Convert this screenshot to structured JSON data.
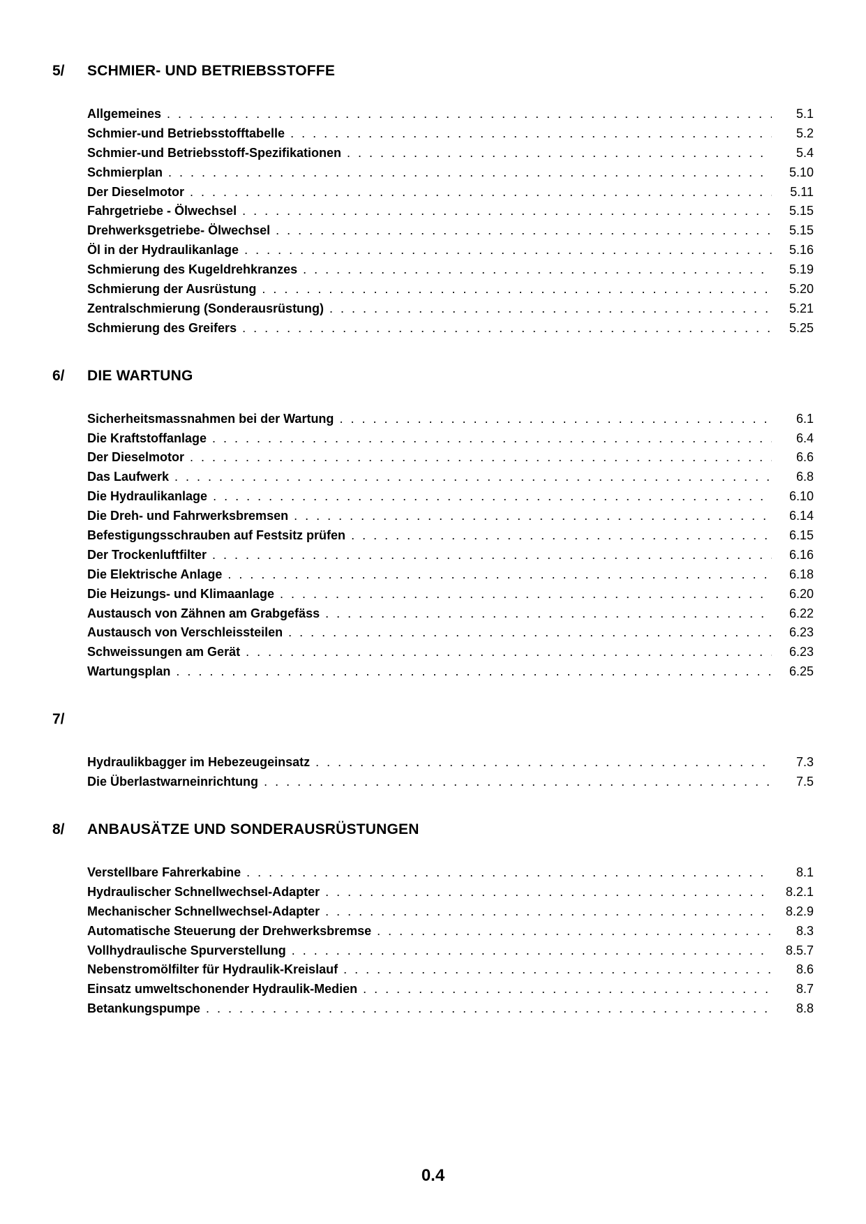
{
  "footer": "0.4",
  "sections": [
    {
      "num": "5/",
      "title": "SCHMIER- UND BETRIEBSSTOFFE",
      "entries": [
        {
          "title": "Allgemeines",
          "page": "5.1"
        },
        {
          "title": "Schmier-und Betriebsstofftabelle",
          "page": "5.2"
        },
        {
          "title": "Schmier-und Betriebsstoff-Spezifikationen",
          "page": "5.4"
        },
        {
          "title": "Schmierplan",
          "page": "5.10"
        },
        {
          "title": "Der Dieselmotor",
          "page": "5.11"
        },
        {
          "title": "Fahrgetriebe - Ölwechsel",
          "page": "5.15"
        },
        {
          "title": "Drehwerksgetriebe- Ölwechsel",
          "page": "5.15"
        },
        {
          "title": "Öl in der Hydraulikanlage",
          "page": "5.16"
        },
        {
          "title": "Schmierung des Kugeldrehkranzes",
          "page": "5.19"
        },
        {
          "title": "Schmierung der Ausrüstung",
          "page": "5.20"
        },
        {
          "title": "Zentralschmierung (Sonderausrüstung)",
          "page": "5.21"
        },
        {
          "title": "Schmierung des Greifers",
          "page": "5.25"
        }
      ]
    },
    {
      "num": "6/",
      "title": "DIE WARTUNG",
      "entries": [
        {
          "title": "Sicherheitsmassnahmen bei der Wartung",
          "page": "6.1"
        },
        {
          "title": "Die Kraftstoffanlage",
          "page": "6.4"
        },
        {
          "title": "Der Dieselmotor",
          "page": "6.6"
        },
        {
          "title": "Das Laufwerk",
          "page": "6.8"
        },
        {
          "title": "Die Hydraulikanlage",
          "page": "6.10"
        },
        {
          "title": "Die Dreh- und Fahrwerksbremsen",
          "page": "6.14"
        },
        {
          "title": "Befestigungsschrauben auf Festsitz prüfen",
          "page": "6.15"
        },
        {
          "title": "Der Trockenluftfilter",
          "page": "6.16"
        },
        {
          "title": "Die Elektrische Anlage",
          "page": "6.18"
        },
        {
          "title": "Die Heizungs- und Klimaanlage",
          "page": "6.20"
        },
        {
          "title": "Austausch von Zähnen am Grabgefäss",
          "page": "6.22"
        },
        {
          "title": "Austausch von Verschleissteilen",
          "page": "6.23"
        },
        {
          "title": "Schweissungen am Gerät",
          "page": "6.23"
        },
        {
          "title": "Wartungsplan",
          "page": "6.25"
        }
      ]
    },
    {
      "num": "7/",
      "title": "",
      "entries": [
        {
          "title": "Hydraulikbagger im Hebezeugeinsatz",
          "page": "7.3"
        },
        {
          "title": "Die Überlastwarneinrichtung",
          "page": "7.5"
        }
      ]
    },
    {
      "num": "8/",
      "title": "ANBAUSÄTZE UND SONDERAUSRÜSTUNGEN",
      "entries": [
        {
          "title": "Verstellbare Fahrerkabine",
          "page": "8.1"
        },
        {
          "title": "Hydraulischer Schnellwechsel-Adapter",
          "page": "8.2.1"
        },
        {
          "title": "Mechanischer Schnellwechsel-Adapter",
          "page": "8.2.9"
        },
        {
          "title": "Automatische Steuerung der Drehwerksbremse",
          "page": "8.3"
        },
        {
          "title": "Vollhydraulische Spurverstellung",
          "page": "8.5.7"
        },
        {
          "title": "Nebenstromölfilter für Hydraulik-Kreislauf",
          "page": "8.6"
        },
        {
          "title": "Einsatz umweltschonender Hydraulik-Medien",
          "page": "8.7"
        },
        {
          "title": "Betankungspumpe",
          "page": "8.8"
        }
      ]
    }
  ]
}
